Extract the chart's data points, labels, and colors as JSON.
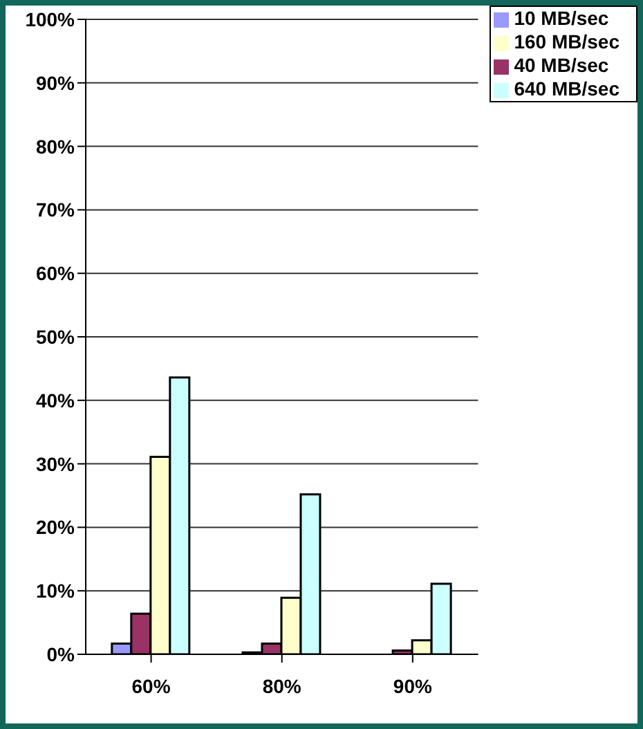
{
  "chart_data": {
    "type": "bar",
    "categories": [
      "60%",
      "80%",
      "90%"
    ],
    "series": [
      {
        "name": "10 MB/sec",
        "color": "#9999ff",
        "values": [
          1.7,
          0.3,
          0
        ]
      },
      {
        "name": "40 MB/sec",
        "color": "#993366",
        "values": [
          6.4,
          1.7,
          0.6
        ]
      },
      {
        "name": "160 MB/sec",
        "color": "#ffffcc",
        "values": [
          31.1,
          8.9,
          2.2
        ]
      },
      {
        "name": "640 MB/sec",
        "color": "#ccffff",
        "values": [
          43.6,
          25.2,
          11.1
        ]
      }
    ],
    "ylim": [
      0,
      100
    ],
    "yticks": [
      {
        "value": 0,
        "label": "0%"
      },
      {
        "value": 10,
        "label": "10%"
      },
      {
        "value": 20,
        "label": "20%"
      },
      {
        "value": 30,
        "label": "30%"
      },
      {
        "value": 40,
        "label": "40%"
      },
      {
        "value": 50,
        "label": "50%"
      },
      {
        "value": 60,
        "label": "60%"
      },
      {
        "value": 70,
        "label": "70%"
      },
      {
        "value": 80,
        "label": "80%"
      },
      {
        "value": 90,
        "label": "90%"
      },
      {
        "value": 100,
        "label": "100%"
      }
    ],
    "grid": "y",
    "legend": "top right"
  }
}
